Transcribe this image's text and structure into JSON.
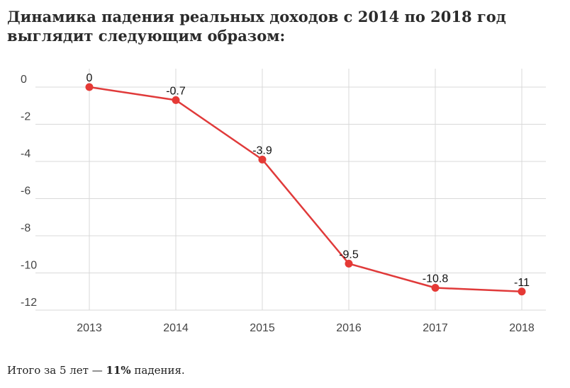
{
  "heading": "Динамика падения реальных доходов с 2014 по 2018 год выглядит следующим образом:",
  "caption": {
    "prefix": "Итого за 5 лет — ",
    "bold": "11%",
    "suffix": " падения."
  },
  "chart_data": {
    "type": "line",
    "categories": [
      "2013",
      "2014",
      "2015",
      "2016",
      "2017",
      "2018"
    ],
    "values": [
      0,
      -0.7,
      -3.9,
      -9.5,
      -10.8,
      -11
    ],
    "data_labels": [
      "0",
      "-0.7",
      "-3.9",
      "-9.5",
      "-10.8",
      "-11"
    ],
    "y_ticks": [
      0,
      -2,
      -4,
      -6,
      -8,
      -10,
      -12
    ],
    "y_tick_labels": [
      "0",
      "-2",
      "-4",
      "-6",
      "-8",
      "-10",
      "-12"
    ],
    "ylim": [
      -12,
      0
    ],
    "grid": true,
    "legend": "none",
    "colors": {
      "line": "#e03a3a",
      "marker": "#e53935",
      "grid": "#d9d9d9",
      "tick_text": "#444444",
      "label_text": "#111111"
    }
  }
}
